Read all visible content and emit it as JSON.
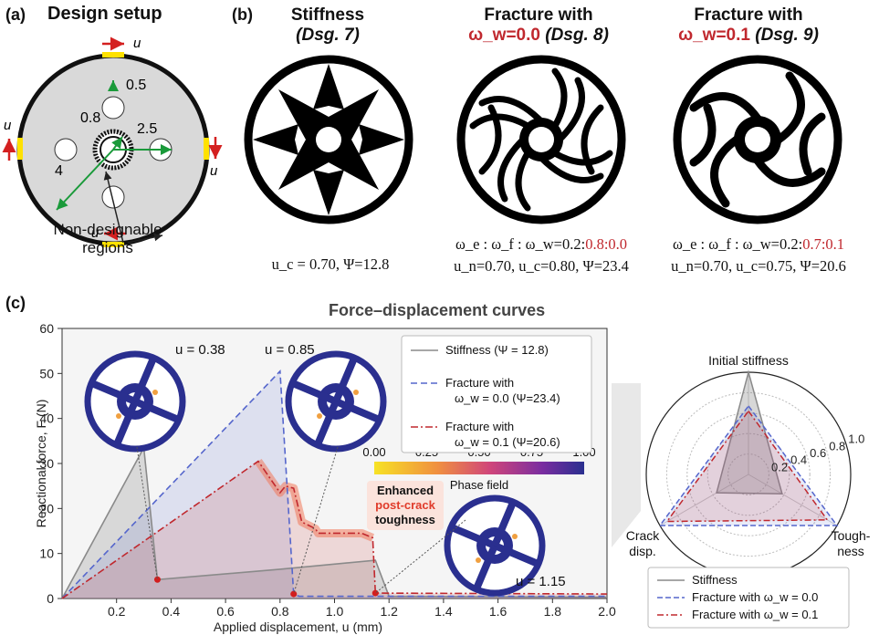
{
  "panel_a": {
    "label": "(a)",
    "title": "Design setup",
    "u_label": "u",
    "dims": [
      "0.5",
      "0.8",
      "2.5",
      "4"
    ],
    "non_designable": [
      "Non-designable",
      "regions"
    ]
  },
  "panel_b": {
    "label": "(b)",
    "designs": [
      {
        "title_line1": "Stiffness",
        "title_line2": "(Dsg. 7)",
        "caption1": "u_c = 0.70, Ψ=12.8",
        "caption2": ""
      },
      {
        "title_line1": "Fracture with",
        "title_line2_red": "ω_w=0.0",
        "title_line2_rest": " (Dsg. 8)",
        "caption1_black": "ω_e : ω_f : ω_w=0.2:",
        "caption1_red": "0.8:0.0",
        "caption2": "u_n=0.70, u_c=0.80, Ψ=23.4"
      },
      {
        "title_line1": "Fracture with",
        "title_line2_red": "ω_w=0.1",
        "title_line2_rest": " (Dsg. 9)",
        "caption1_black": "ω_e : ω_f : ω_w=0.2:",
        "caption1_red": "0.7:0.1",
        "caption2": "u_n=0.70, u_c=0.75, Ψ=20.6"
      }
    ]
  },
  "panel_c": {
    "label": "(c)",
    "title": "Force–displacement curves",
    "annotations": {
      "u038": "u = 0.38",
      "u085": "u = 0.85",
      "u115": "u = 1.15"
    },
    "colorbar": {
      "ticks": [
        "0.00",
        "0.25",
        "0.50",
        "0.75",
        "1.00"
      ],
      "label": "Phase field"
    },
    "callout": {
      "line1": "Enhanced",
      "line2": "post-crack",
      "line3": "toughness"
    },
    "legend": [
      {
        "text1": "Stiffness (Ψ = 12.8)",
        "text2": ""
      },
      {
        "text1": "Fracture with",
        "text2": "ω_w = 0.0 (Ψ=23.4)"
      },
      {
        "text1": "Fracture with",
        "text2": "ω_w = 0.1 (Ψ=20.6)"
      }
    ]
  },
  "radar": {
    "axes": [
      "Initial stiffness",
      "Tough-",
      "ness",
      "Crack",
      "disp."
    ],
    "ticks": [
      "0.2",
      "0.4",
      "0.6",
      "0.8",
      "1.0"
    ],
    "legend": [
      "Stiffness",
      "Fracture with ω_w = 0.0",
      "Fracture with ω_w = 0.1"
    ]
  },
  "colors": {
    "stiffness": "#8a8a8a",
    "w00": "#5566cc",
    "w01": "#c0282e",
    "structure": "#2a2f8f"
  },
  "chart_data": [
    {
      "type": "line",
      "title": "Force–displacement curves",
      "xlabel": "Applied displacement, u (mm)",
      "ylabel": "Reactional force, F (N)",
      "xlim": [
        0,
        2.0
      ],
      "ylim": [
        0,
        60
      ],
      "xticks": [
        "0.2",
        "0.4",
        "0.6",
        "0.8",
        "1.0",
        "1.2",
        "1.4",
        "1.6",
        "1.8",
        "2.0"
      ],
      "yticks": [
        "0",
        "10",
        "20",
        "30",
        "40",
        "50",
        "60"
      ],
      "grid": false,
      "legend_position": "top-right",
      "series": [
        {
          "name": "Stiffness (Ψ = 12.8)",
          "x": [
            0,
            0.3,
            0.35,
            0.8,
            1.15,
            1.2,
            2.0
          ],
          "y": [
            0,
            33.5,
            4.2,
            6.5,
            8.5,
            0.5,
            0.3
          ]
        },
        {
          "name": "Fracture with ω_w = 0.0 (Ψ=23.4)",
          "x": [
            0,
            0.8,
            0.85,
            0.87,
            2.0
          ],
          "y": [
            0,
            50.5,
            1.0,
            0.5,
            0.5
          ]
        },
        {
          "name": "Fracture with ω_w = 0.1 (Ψ=20.6)",
          "x": [
            0,
            0.72,
            0.8,
            0.82,
            0.85,
            0.88,
            0.93,
            0.94,
            1.1,
            1.14,
            1.15,
            2.0
          ],
          "y": [
            0,
            30.5,
            23.5,
            25,
            24.5,
            17,
            15.5,
            14.5,
            14.5,
            13.5,
            1.2,
            1.0
          ]
        }
      ],
      "markers": [
        {
          "x": 0.35,
          "y": 4.2
        },
        {
          "x": 0.85,
          "y": 1.0
        },
        {
          "x": 1.15,
          "y": 1.2
        }
      ]
    },
    {
      "type": "radar",
      "axes": [
        "Initial stiffness",
        "Toughness",
        "Crack disp."
      ],
      "rlim": [
        0,
        1.0
      ],
      "series": [
        {
          "name": "Stiffness",
          "values": [
            1.0,
            0.38,
            0.36
          ]
        },
        {
          "name": "Fracture with ω_w = 0.0",
          "values": [
            0.67,
            1.0,
            1.0
          ]
        },
        {
          "name": "Fracture with ω_w = 0.1",
          "values": [
            0.62,
            0.89,
            0.92
          ]
        }
      ]
    }
  ]
}
